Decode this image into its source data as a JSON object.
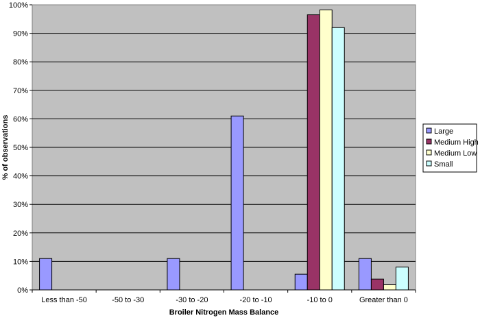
{
  "chart_data": {
    "type": "bar",
    "xlabel": "Broiler Nitrogen Mass Balance",
    "ylabel": "% of observations",
    "ylim": [
      0,
      100
    ],
    "y_ticks": [
      "0%",
      "10%",
      "20%",
      "30%",
      "40%",
      "50%",
      "60%",
      "70%",
      "80%",
      "90%",
      "100%"
    ],
    "categories": [
      "Less than -50",
      "-50 to -30",
      "-30 to -20",
      "-20 to -10",
      "-10 to 0",
      "Greater than 0"
    ],
    "series": [
      {
        "name": "Large",
        "color": "#9999ff",
        "values": [
          11,
          0,
          11,
          61,
          5.5,
          11
        ]
      },
      {
        "name": "Medium High",
        "color": "#993366",
        "values": [
          0,
          0,
          0,
          0,
          96.5,
          3.8
        ]
      },
      {
        "name": "Medium Low",
        "color": "#ffffcc",
        "values": [
          0,
          0,
          0,
          0,
          98.2,
          1.8
        ]
      },
      {
        "name": "Small",
        "color": "#ccffff",
        "values": [
          0,
          0,
          0,
          0,
          92,
          8
        ]
      }
    ],
    "plot_background": "#c0c0c0",
    "grid": true,
    "legend_position": "right"
  }
}
